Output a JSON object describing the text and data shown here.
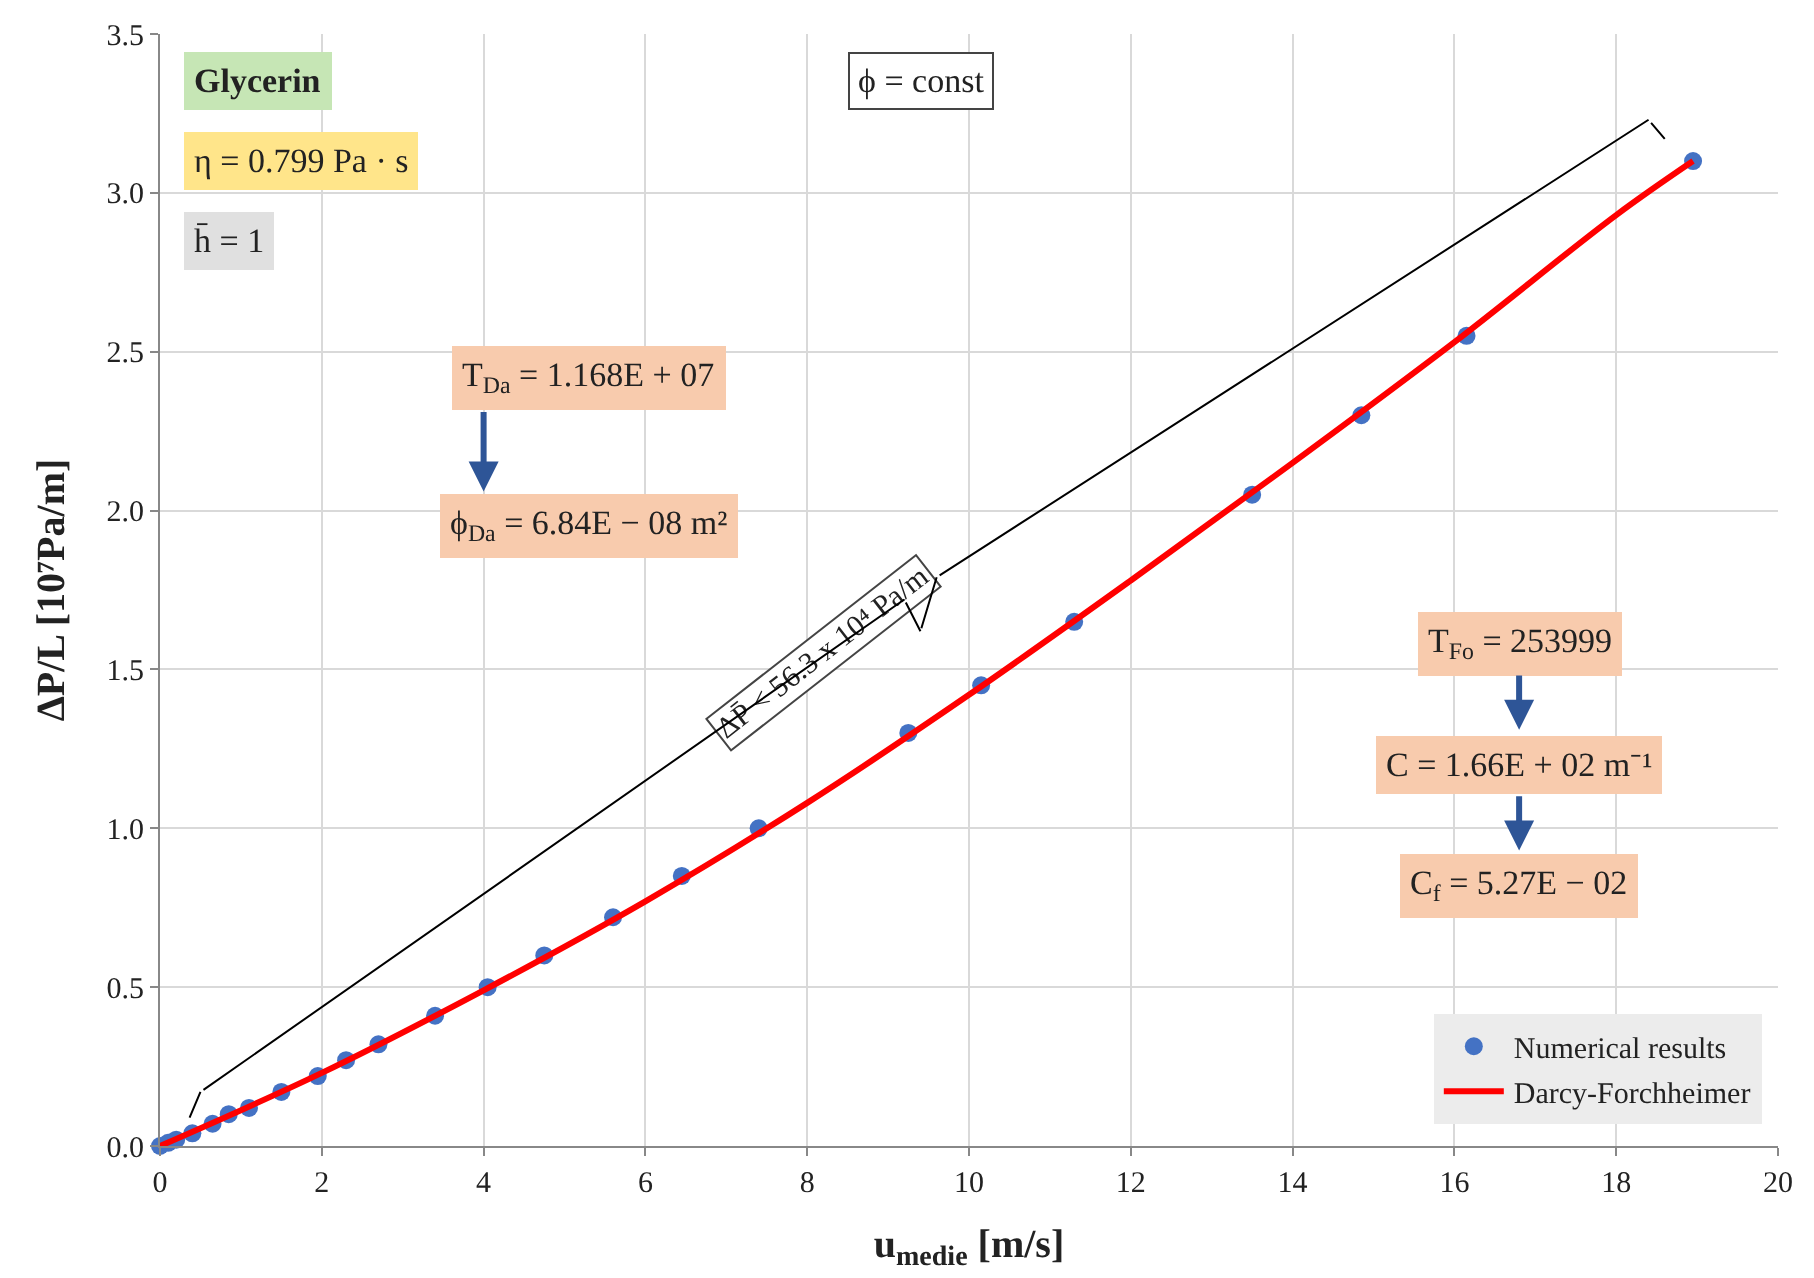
{
  "chart_data": {
    "type": "scatter",
    "xlabel": "u$_{medie}$ [m/s]",
    "ylabel": "ΔP/L [10⁷Pa/m]",
    "xlim": [
      0,
      20
    ],
    "xticks": [
      0,
      2,
      4,
      6,
      8,
      10,
      12,
      14,
      16,
      18,
      20
    ],
    "ylim": [
      0,
      3.5
    ],
    "yticks": [
      {
        "value": 0,
        "label": "0.0"
      },
      {
        "value": 0.5,
        "label": "0.5"
      },
      {
        "value": 1,
        "label": "1.0"
      },
      {
        "value": 1.5,
        "label": "1.5"
      },
      {
        "value": 2,
        "label": "2.0"
      },
      {
        "value": 2.5,
        "label": "2.5"
      },
      {
        "value": 3,
        "label": "3.0"
      },
      {
        "value": 3.5,
        "label": "3.5"
      }
    ],
    "grid": true,
    "legend": "bottom right",
    "series": [
      {
        "name": "Numerical results",
        "marker": "circle",
        "color": "#4472c4",
        "x": [
          0,
          0.1,
          0.2,
          0.4,
          0.65,
          0.85,
          1.1,
          1.5,
          1.95,
          2.3,
          2.7,
          3.4,
          4.05,
          4.75,
          5.6,
          6.45,
          7.4,
          9.25,
          10.15,
          11.3,
          13.5,
          14.85,
          16.15,
          18.95
        ],
        "values": [
          0,
          0.01,
          0.02,
          0.04,
          0.07,
          0.1,
          0.12,
          0.17,
          0.22,
          0.27,
          0.32,
          0.41,
          0.5,
          0.6,
          0.72,
          0.85,
          1.0,
          1.3,
          1.45,
          1.65,
          2.05,
          2.3,
          2.55,
          3.1
        ]
      },
      {
        "name": "Darcy-Forchheimer",
        "type": "line",
        "line_style": "solid",
        "color": "#ff0000",
        "x": [
          0,
          2,
          4,
          6,
          8,
          10,
          12,
          14,
          16,
          18,
          18.95
        ],
        "values": [
          0,
          0.23,
          0.49,
          0.77,
          1.08,
          1.42,
          1.78,
          2.15,
          2.53,
          2.93,
          3.1
        ]
      }
    ],
    "annotations": [
      "Glycerin",
      "η = 0.799 Pa · s",
      "h̄ = 1",
      "ϕ = const",
      "T$_{Da}$ = 1.168E + 07",
      "ϕ$_{Da}$ = 6.84E − 08 m²",
      "ΔP̄ < 56.3 x 10⁴ Pa/m",
      "T$_{Fo}$ = 253999",
      "C = 1.66E + 02 m⁻¹",
      "C$_{f}$ = 5.27E − 02"
    ]
  }
}
